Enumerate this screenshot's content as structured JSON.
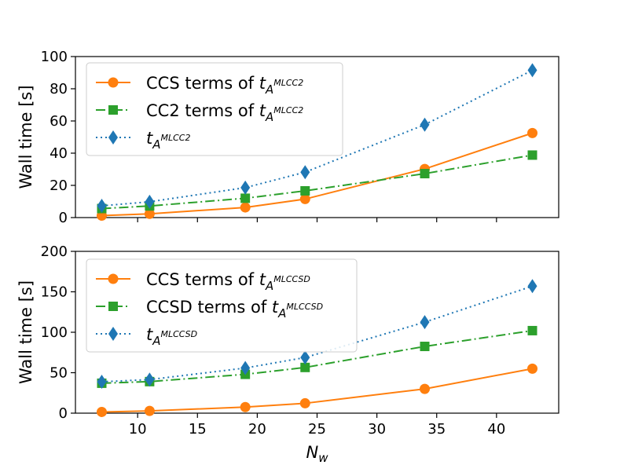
{
  "chart_data": [
    {
      "type": "line",
      "ylabel": "Wall time [s]",
      "ylim": [
        0,
        100
      ],
      "yticks": [
        0,
        20,
        40,
        60,
        80,
        100
      ],
      "xlim": [
        4.8,
        45.2
      ],
      "x": [
        7,
        11,
        19,
        24,
        34,
        43
      ],
      "legend_position": "top-left",
      "series": [
        {
          "name": "CCS terms of ",
          "sub": "MLCC2",
          "color": "#ff7f0e",
          "marker": "circle",
          "dash": "solid",
          "values": [
            1.2,
            2.3,
            6.3,
            11.5,
            30.2,
            52.5
          ]
        },
        {
          "name": "CC2 terms of ",
          "sub": "MLCC2",
          "color": "#2ca02c",
          "marker": "square",
          "dash": "dashdot",
          "values": [
            5.6,
            7.2,
            12.0,
            16.6,
            27.3,
            38.8
          ]
        },
        {
          "name": "",
          "sub": "MLCC2",
          "color": "#1f77b4",
          "marker": "diamond",
          "dash": "dotted",
          "values": [
            7.3,
            9.8,
            18.6,
            28.2,
            57.7,
            91.5
          ]
        }
      ]
    },
    {
      "type": "line",
      "ylabel": "Wall time [s]",
      "xlabel": "N",
      "xlabel_sub": "w",
      "ylim": [
        0,
        200
      ],
      "yticks": [
        0,
        50,
        100,
        150,
        200
      ],
      "xlim": [
        4.8,
        45.2
      ],
      "xticks": [
        10,
        15,
        20,
        25,
        30,
        35,
        40
      ],
      "x": [
        7,
        11,
        19,
        24,
        34,
        43
      ],
      "legend_position": "top-left",
      "series": [
        {
          "name": "CCS terms of ",
          "sub": "MLCCSD",
          "color": "#ff7f0e",
          "marker": "circle",
          "dash": "solid",
          "values": [
            1.5,
            2.8,
            7.5,
            12.2,
            30.0,
            55.0
          ]
        },
        {
          "name": "CCSD terms of ",
          "sub": "MLCCSD",
          "color": "#2ca02c",
          "marker": "square",
          "dash": "dashdot",
          "values": [
            37.0,
            39.0,
            48.0,
            56.5,
            82.5,
            102.0
          ]
        },
        {
          "name": "",
          "sub": "MLCCSD",
          "color": "#1f77b4",
          "marker": "diamond",
          "dash": "dotted",
          "values": [
            38.8,
            41.5,
            55.8,
            68.8,
            112.5,
            157.0
          ]
        }
      ]
    }
  ],
  "math_symbol": "t",
  "subscript_base": "A"
}
